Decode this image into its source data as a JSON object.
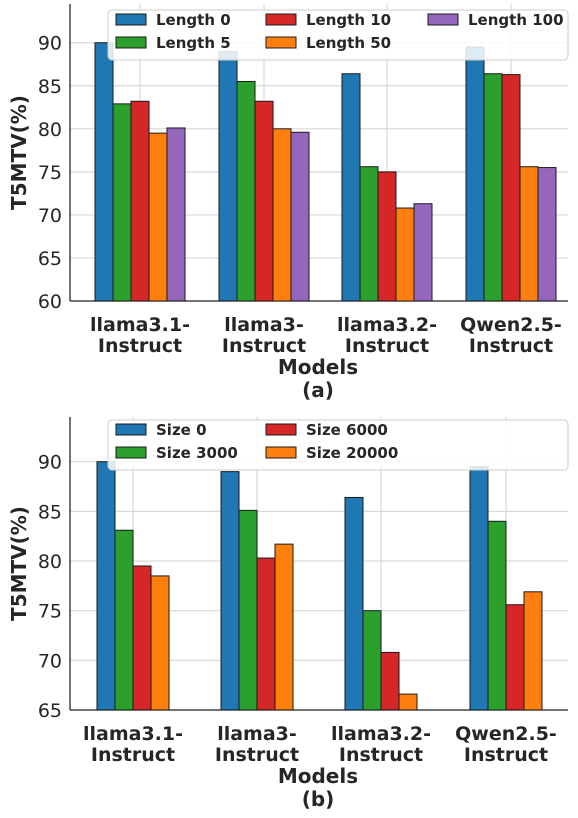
{
  "chart_data": [
    {
      "type": "bar",
      "panel_label": "(a)",
      "xlabel": "Models",
      "ylabel": "T5MTV(%)",
      "categories": [
        [
          "llama3.1-",
          "Instruct"
        ],
        [
          "llama3-",
          "Instruct"
        ],
        [
          "llama3.2-",
          "Instruct"
        ],
        [
          "Qwen2.5-",
          "Instruct"
        ]
      ],
      "ylim": [
        60,
        94.5
      ],
      "yticks": [
        60,
        65,
        70,
        75,
        80,
        85,
        90
      ],
      "grid": true,
      "legend_position": "top-right",
      "legend_columns": 3,
      "series": [
        {
          "name": "Length 0",
          "color": "#1f77b4",
          "values": [
            90.0,
            89.0,
            86.4,
            89.5
          ]
        },
        {
          "name": "Length 5",
          "color": "#2ca02c",
          "values": [
            82.9,
            85.5,
            75.6,
            86.4
          ]
        },
        {
          "name": "Length 10",
          "color": "#d62728",
          "values": [
            83.2,
            83.2,
            75.0,
            86.3
          ]
        },
        {
          "name": "Length 50",
          "color": "#ff7f0e",
          "values": [
            79.5,
            80.0,
            70.8,
            75.6
          ]
        },
        {
          "name": "Length 100",
          "color": "#9467bd",
          "values": [
            80.1,
            79.6,
            71.3,
            75.5
          ]
        }
      ]
    },
    {
      "type": "bar",
      "panel_label": "(b)",
      "xlabel": "Models",
      "ylabel": "T5MTV(%)",
      "categories": [
        [
          "llama3.1-",
          "Instruct"
        ],
        [
          "llama3-",
          "Instruct"
        ],
        [
          "llama3.2-",
          "Instruct"
        ],
        [
          "Qwen2.5-",
          "Instruct"
        ]
      ],
      "ylim": [
        65,
        94.5
      ],
      "yticks": [
        65,
        70,
        75,
        80,
        85,
        90
      ],
      "grid": true,
      "legend_position": "top-right",
      "legend_columns": 3,
      "series": [
        {
          "name": "Size 0",
          "color": "#1f77b4",
          "values": [
            90.0,
            89.0,
            86.4,
            89.5
          ]
        },
        {
          "name": "Size 3000",
          "color": "#2ca02c",
          "values": [
            83.1,
            85.1,
            75.0,
            84.0
          ]
        },
        {
          "name": "Size 6000",
          "color": "#d62728",
          "values": [
            79.5,
            80.3,
            70.8,
            75.6
          ]
        },
        {
          "name": "Size 20000",
          "color": "#ff7f0e",
          "values": [
            78.5,
            81.7,
            66.6,
            76.9
          ]
        }
      ]
    }
  ]
}
